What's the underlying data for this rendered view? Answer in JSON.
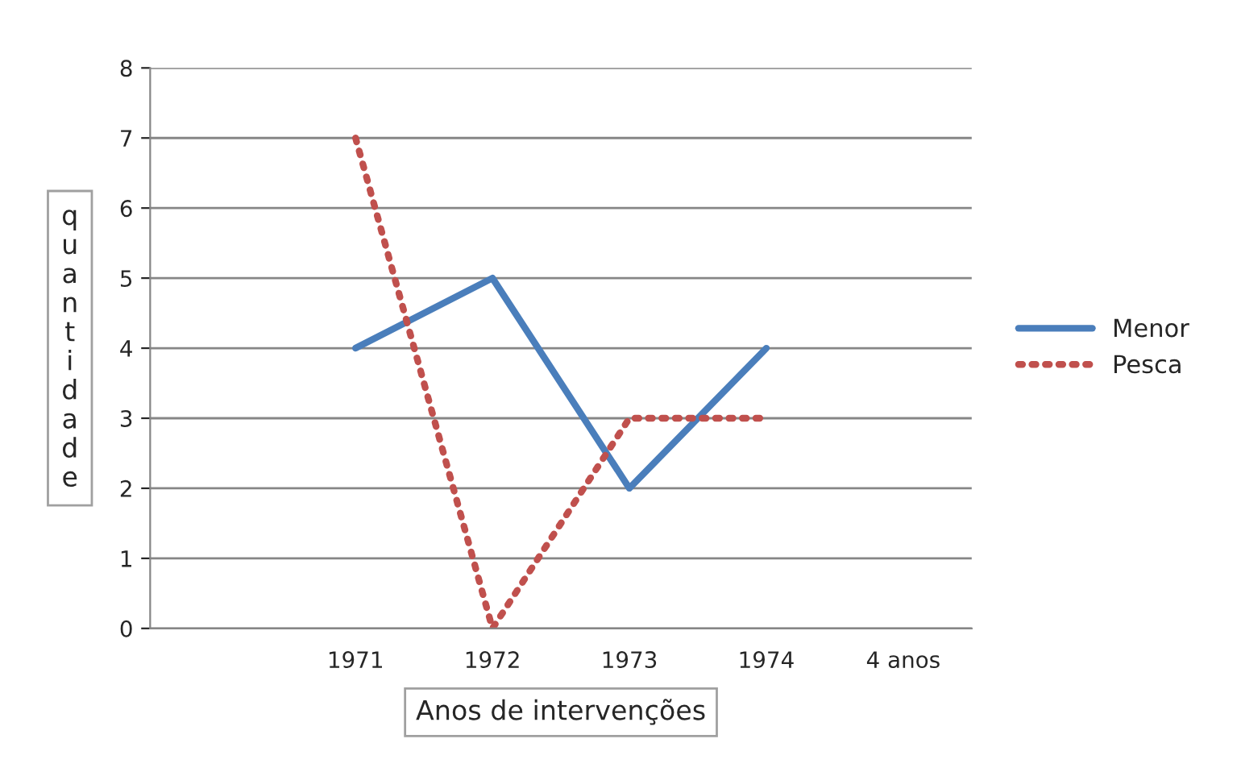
{
  "chart_data": {
    "type": "line",
    "categories": [
      null,
      "1971",
      "1972",
      "1973",
      "1974",
      "4 anos"
    ],
    "series": [
      {
        "name": "Menor",
        "color": "#4a7ebb",
        "line_style": "solid",
        "values": [
          null,
          4,
          5,
          2,
          4,
          null
        ]
      },
      {
        "name": "Pesca",
        "color": "#c0504d",
        "line_style": "dotted",
        "values": [
          null,
          7,
          0,
          3,
          3,
          null
        ]
      }
    ],
    "xlabel": "Anos de intervenções",
    "ylabel": "quantidade",
    "ylim": [
      0,
      8
    ],
    "yticks": [
      0,
      1,
      2,
      3,
      4,
      5,
      6,
      7,
      8
    ],
    "grid": "y",
    "legend": "right",
    "marker": "none"
  }
}
